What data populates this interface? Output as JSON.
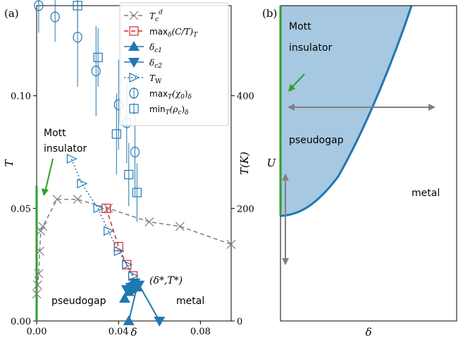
{
  "figure": {
    "panel_a_label": "(a)",
    "panel_b_label": "(b)"
  },
  "colors": {
    "blue": "#1f77b4",
    "red": "#d62728",
    "gray": "#7f7f7f",
    "green": "#2ca02c",
    "fill": "#a6c8e0"
  },
  "chart_data": [
    {
      "type": "scatter",
      "panel": "a",
      "xlabel": "δ",
      "ylabel_left": "T",
      "ylabel_right": "T(K)",
      "xlim": [
        0.0,
        0.095
      ],
      "ylim": [
        0.0,
        0.14
      ],
      "ylim_right_K": [
        0,
        560
      ],
      "x_ticks": [
        "0.00",
        "0.04",
        "0.08"
      ],
      "y_ticks_left": [
        "0.00",
        "0.05",
        "0.10"
      ],
      "y_ticks_right": [
        "0",
        "200",
        "400"
      ],
      "legend_position": "top-right",
      "annotations": {
        "mott": [
          "Mott",
          "insulator"
        ],
        "pseudogap": "pseudogap",
        "metal": "metal",
        "critical": "(δ*,T*)"
      },
      "series": [
        {
          "name": "T_c^d",
          "legend": "T",
          "legend_sup": "d",
          "legend_sub": "c",
          "marker": "x",
          "line": "dashed",
          "color": "gray",
          "x": [
            0.0,
            0.0005,
            0.001,
            0.0015,
            0.002,
            0.003,
            0.01,
            0.02,
            0.035,
            0.055,
            0.07,
            0.095
          ],
          "y": [
            0.012,
            0.016,
            0.021,
            0.031,
            0.04,
            0.042,
            0.054,
            0.054,
            0.05,
            0.044,
            0.042,
            0.034
          ]
        },
        {
          "name": "max_δ(C/T)_T",
          "legend": "max",
          "legend_rest": "(C/T)",
          "legend_sub1": "δ",
          "legend_sub2": "T",
          "marker": "square",
          "line": "dashed",
          "color": "red",
          "x": [
            0.034,
            0.04,
            0.044,
            0.047
          ],
          "y": [
            0.05,
            0.033,
            0.025,
            0.02
          ]
        },
        {
          "name": "δ_c1",
          "legend": "δ",
          "legend_sub": "c1",
          "marker": "triangle-up",
          "line": "solid",
          "color": "blue",
          "x": [
            0.043,
            0.045,
            0.047,
            0.049,
            0.045
          ],
          "y": [
            0.01,
            0.013,
            0.016,
            0.015,
            0.0
          ]
        },
        {
          "name": "δ_c2",
          "legend": "δ",
          "legend_sub": "c2",
          "marker": "triangle-down",
          "line": "solid",
          "color": "blue",
          "x": [
            0.044,
            0.046,
            0.048,
            0.05,
            0.06
          ],
          "y": [
            0.014,
            0.015,
            0.017,
            0.016,
            0.0
          ]
        },
        {
          "name": "T_W",
          "legend": "T",
          "legend_sub": "W",
          "marker": "triangle-right",
          "line": "dotted",
          "color": "blue",
          "x": [
            0.017,
            0.022,
            0.03,
            0.035,
            0.04,
            0.044,
            0.047
          ],
          "y": [
            0.072,
            0.061,
            0.05,
            0.04,
            0.031,
            0.025,
            0.02
          ]
        },
        {
          "name": "max_T(χ_0)_δ",
          "legend": "max",
          "legend_rest": "(χ",
          "legend_sub1": "T",
          "legend_sub2": "0",
          "legend_tail": ")",
          "legend_sub3": "δ",
          "marker": "circle",
          "line": "none",
          "color": "blue",
          "x": [
            0.001,
            0.009,
            0.02,
            0.029,
            0.04,
            0.044,
            0.048
          ],
          "y": [
            0.14,
            0.135,
            0.126,
            0.111,
            0.096,
            0.088,
            0.075
          ],
          "yerr": [
            0.012,
            0.011,
            0.022,
            0.02,
            0.02,
            0.018,
            0.02
          ]
        },
        {
          "name": "min_T(ρ_c)_δ",
          "legend": "min",
          "legend_rest": "(ρ",
          "legend_sub1": "T",
          "legend_sub2": "c",
          "legend_tail": ")",
          "legend_sub3": "δ",
          "marker": "square",
          "line": "none",
          "color": "blue",
          "x": [
            0.02,
            0.03,
            0.039,
            0.045,
            0.049
          ],
          "y": [
            0.14,
            0.117,
            0.083,
            0.065,
            0.057
          ],
          "yerr": [
            0.01,
            0.013,
            0.018,
            0.014,
            0.013
          ]
        }
      ],
      "critical_point": {
        "x": 0.047,
        "y": 0.015
      },
      "mott_line": {
        "x": 0.0,
        "y": [
          0.0,
          0.06
        ]
      }
    },
    {
      "type": "area",
      "panel": "b",
      "xlabel": "δ",
      "ylabel": "U",
      "annotations": {
        "mott": [
          "Mott",
          "insulator"
        ],
        "pseudogap": "pseudogap",
        "metal": "metal"
      },
      "regions": [
        "Mott insulator",
        "pseudogap",
        "metal"
      ]
    }
  ]
}
